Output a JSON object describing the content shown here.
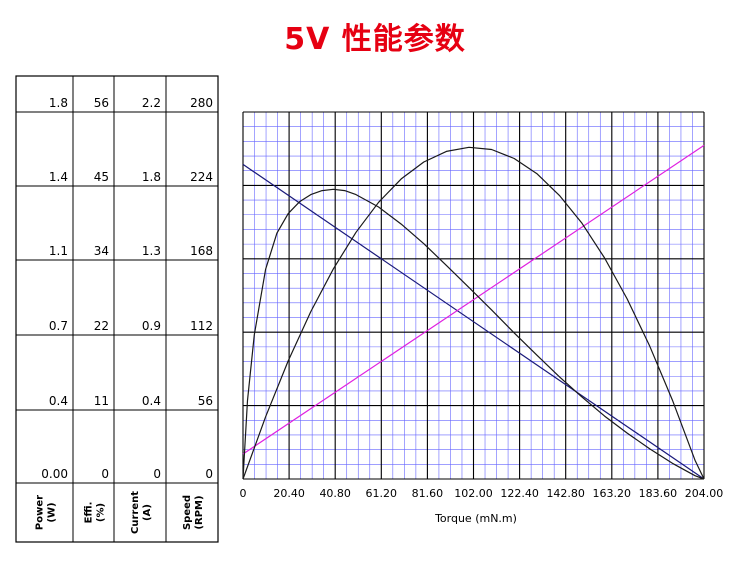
{
  "page": {
    "title": "5V 性能参数"
  },
  "colors": {
    "title": "#e60012",
    "minor_grid": "#6666ff",
    "major_grid": "#000000",
    "speed_line": "#1a1a7a",
    "current_line": "#e020e0",
    "curve_line": "#1a1a1a"
  },
  "chart_data": {
    "type": "line",
    "xlabel": "Torque (mN.m)",
    "xlim": [
      0,
      204
    ],
    "x_ticks": [
      "0",
      "20.40",
      "40.80",
      "61.20",
      "81.60",
      "102.00",
      "122.40",
      "142.80",
      "163.20",
      "183.60",
      "204.00"
    ],
    "y_axes": [
      {
        "key": "power",
        "label": "Power\n(W)",
        "ticks": [
          "0.00",
          "0.4",
          "0.7",
          "1.1",
          "1.4",
          "1.8"
        ],
        "max": 1.8
      },
      {
        "key": "efficiency",
        "label": "Effi.\n(%)",
        "ticks": [
          "0",
          "11",
          "22",
          "34",
          "45",
          "56"
        ],
        "max": 56
      },
      {
        "key": "current",
        "label": "Current\n(A)",
        "ticks": [
          "0",
          "0.4",
          "0.9",
          "1.3",
          "1.8",
          "2.2"
        ],
        "max": 2.2
      },
      {
        "key": "speed",
        "label": "Speed\n(RPM)",
        "ticks": [
          "0",
          "56",
          "112",
          "168",
          "224",
          "280"
        ],
        "max": 280
      }
    ],
    "series": [
      {
        "axis": "speed",
        "x": [
          0,
          204
        ],
        "y": [
          240,
          0
        ]
      },
      {
        "axis": "current",
        "x": [
          0,
          204
        ],
        "y": [
          0.15,
          2.0
        ]
      },
      {
        "axis": "efficiency",
        "x": [
          0,
          2,
          5,
          10,
          15,
          20,
          25,
          30,
          35,
          40,
          45,
          50,
          60,
          70,
          80,
          90,
          100,
          110,
          120,
          130,
          140,
          150,
          160,
          170,
          180,
          190,
          200,
          204
        ],
        "y": [
          0,
          12,
          22,
          32,
          37.5,
          40.5,
          42.3,
          43.4,
          44,
          44.2,
          44,
          43.4,
          41.5,
          38.9,
          35.9,
          32.6,
          29.2,
          25.8,
          22.3,
          18.9,
          15.6,
          12.5,
          9.6,
          7,
          4.6,
          2.4,
          0.5,
          0
        ]
      },
      {
        "axis": "power",
        "x": [
          0,
          10,
          20,
          30,
          40,
          50,
          60,
          70,
          80,
          90,
          100,
          110,
          120,
          130,
          140,
          150,
          160,
          170,
          180,
          190,
          200,
          204
        ],
        "y": [
          0,
          0.305,
          0.579,
          0.821,
          1.031,
          1.21,
          1.357,
          1.472,
          1.555,
          1.607,
          1.627,
          1.616,
          1.572,
          1.498,
          1.391,
          1.254,
          1.084,
          0.883,
          0.651,
          0.387,
          0.092,
          0
        ]
      }
    ],
    "grid": true
  }
}
